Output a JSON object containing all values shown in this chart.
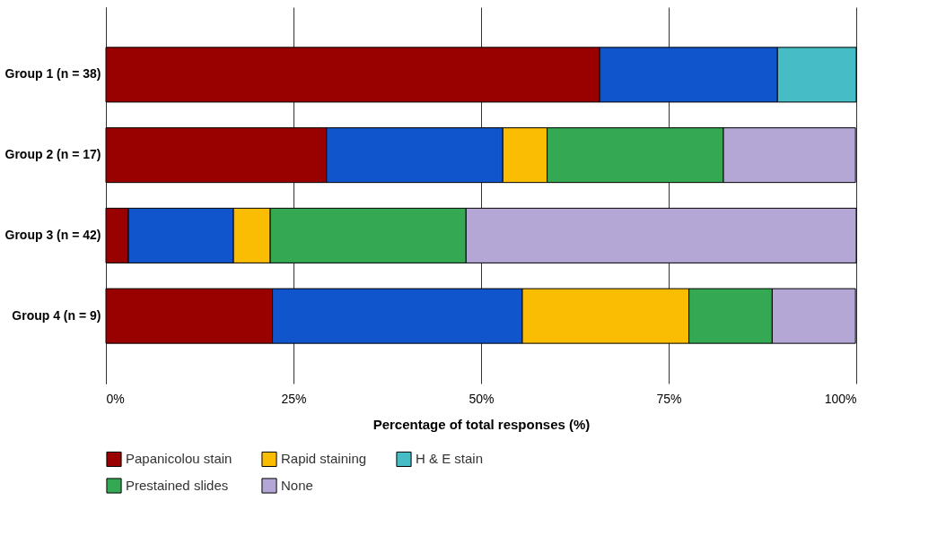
{
  "chart_data": {
    "type": "bar",
    "orientation": "horizontal",
    "stacked": true,
    "xlabel": "Percentage of total responses (%)",
    "categories": [
      "Group 1 (n = 38)",
      "Group 2 (n = 17)",
      "Group 3 (n = 42)",
      "Group 4 (n = 9)"
    ],
    "series": [
      {
        "name": "Papanicolou stain",
        "color": "#990000",
        "values": [
          65.8,
          29.4,
          3,
          22.2
        ]
      },
      {
        "color": "#1155cc",
        "values": [
          23.7,
          23.5,
          14,
          33.3
        ]
      },
      {
        "name": "Rapid staining",
        "color": "#fbbc04",
        "values": [
          null,
          5.9,
          4.9,
          22.2
        ]
      },
      {
        "name": "H & E stain",
        "color": "#46bdc6",
        "values": [
          10.5,
          null,
          null,
          null
        ]
      },
      {
        "name": "Prestained slides",
        "color": "#34a853",
        "values": [
          null,
          23.5,
          26.1,
          11.1
        ]
      },
      {
        "name": "None",
        "color": "#b4a7d6",
        "values": [
          null,
          17.6,
          52,
          11.1
        ]
      }
    ],
    "xlim": [
      0,
      100
    ],
    "xticks": [
      {
        "value": 0,
        "label": "0%"
      },
      {
        "value": 25,
        "label": "25%"
      },
      {
        "value": 50,
        "label": "50%"
      },
      {
        "value": 75,
        "label": "75%"
      },
      {
        "value": 100,
        "label": "100%"
      }
    ],
    "grid": "x",
    "legend": "bottom"
  }
}
